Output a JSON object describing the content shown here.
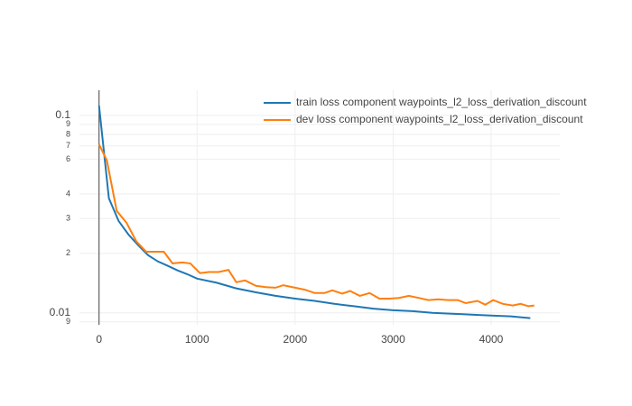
{
  "chart_data": {
    "type": "line",
    "log_y": true,
    "grid": true,
    "legend": "top-right",
    "xlim": [
      -200,
      4700
    ],
    "xticks": [
      0,
      1000,
      2000,
      3000,
      4000
    ],
    "ylim": [
      0.0087,
      0.134
    ],
    "yticks": [
      0.1,
      {
        "value": 0.09,
        "label": "9"
      },
      {
        "value": 0.08,
        "label": "8"
      },
      {
        "value": 0.07,
        "label": "7"
      },
      {
        "value": 0.06,
        "label": "6"
      },
      {
        "value": 0.04,
        "label": "4"
      },
      {
        "value": 0.03,
        "label": "3"
      },
      {
        "value": 0.02,
        "label": "2"
      },
      0.01,
      {
        "value": 0.009,
        "label": "9"
      }
    ],
    "series": [
      {
        "name": "train loss component waypoints_l2_loss_derivation_discount",
        "color": "#1f77b4",
        "x": [
          0,
          100,
          200,
          300,
          400,
          500,
          600,
          700,
          800,
          900,
          1000,
          1200,
          1400,
          1600,
          1800,
          2000,
          2200,
          2400,
          2600,
          2800,
          3000,
          3200,
          3400,
          3600,
          3800,
          4000,
          4200,
          4400
        ],
        "values": [
          0.112,
          0.038,
          0.0292,
          0.0249,
          0.022,
          0.0196,
          0.0182,
          0.0173,
          0.0164,
          0.0157,
          0.0149,
          0.0142,
          0.0133,
          0.0127,
          0.0122,
          0.0118,
          0.0115,
          0.0111,
          0.0108,
          0.0105,
          0.0103,
          0.0102,
          0.01,
          0.0099,
          0.0098,
          0.0097,
          0.0096,
          0.0094
        ]
      },
      {
        "name": "dev loss component waypoints_l2_loss_derivation_discount",
        "color": "#ff7f0e",
        "x": [
          0,
          80,
          180,
          280,
          380,
          480,
          580,
          660,
          750,
          850,
          930,
          1030,
          1120,
          1220,
          1320,
          1400,
          1490,
          1600,
          1700,
          1800,
          1880,
          2000,
          2100,
          2200,
          2300,
          2380,
          2480,
          2560,
          2660,
          2760,
          2860,
          2960,
          3060,
          3160,
          3260,
          3360,
          3460,
          3560,
          3660,
          3740,
          3860,
          3940,
          4020,
          4120,
          4220,
          4300,
          4380,
          4440
        ],
        "values": [
          0.0714,
          0.059,
          0.0328,
          0.0286,
          0.023,
          0.0204,
          0.0204,
          0.0204,
          0.0178,
          0.018,
          0.0178,
          0.0159,
          0.0161,
          0.0161,
          0.0165,
          0.0143,
          0.0146,
          0.0137,
          0.0135,
          0.0134,
          0.0138,
          0.0134,
          0.0131,
          0.0126,
          0.0126,
          0.013,
          0.0125,
          0.0129,
          0.0122,
          0.0126,
          0.0118,
          0.0118,
          0.0119,
          0.0122,
          0.0119,
          0.0116,
          0.0117,
          0.0116,
          0.0116,
          0.0112,
          0.0115,
          0.011,
          0.0116,
          0.0111,
          0.0109,
          0.0111,
          0.0108,
          0.0109
        ]
      }
    ]
  }
}
